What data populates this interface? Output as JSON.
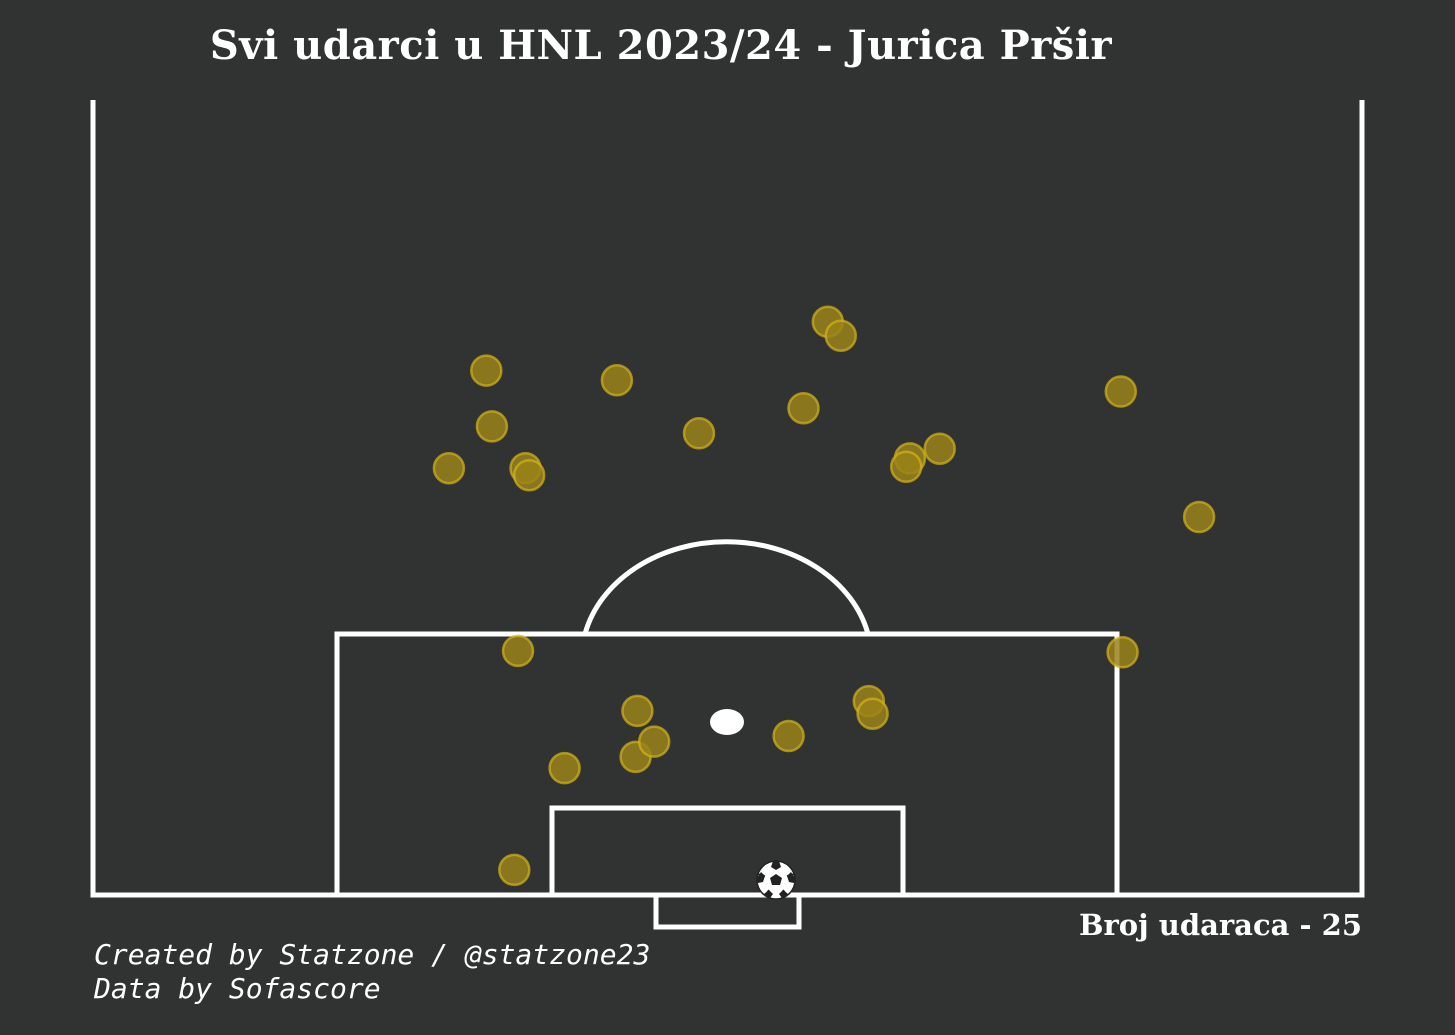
{
  "title": "Svi udarci u HNL 2023/24 - Jurica Pršir",
  "shot_count_label": "Broj udaraca - 25",
  "credits": {
    "line1": "Created by Statzone / @statzone23",
    "line2": "Data by Sofascore"
  },
  "colors": {
    "background": "#313332",
    "lines": "#ffffff",
    "shot_fill": "#9a8319",
    "shot_edge": "#d4b418"
  },
  "icons": {
    "ball": "football-icon"
  },
  "chart_data": {
    "type": "scatter",
    "description_units": "meters from the goal-line center; x = lateral (negative left), y = distance from goal line",
    "series": [
      {
        "values": [
          {
            "x": -11.2,
            "y": 17.5
          },
          {
            "x": -4.8,
            "y": 13.2
          },
          {
            "x": 7.6,
            "y": 13.9
          },
          {
            "x": 7.8,
            "y": 13.0
          },
          {
            "x": 21.2,
            "y": 17.4
          },
          {
            "x": -4.9,
            "y": 9.9
          },
          {
            "x": -3.9,
            "y": 11.0
          },
          {
            "x": 3.3,
            "y": 11.4
          },
          {
            "x": -8.7,
            "y": 9.1
          },
          {
            "x": -11.4,
            "y": 1.8
          },
          {
            "x": 5.4,
            "y": 41.1
          },
          {
            "x": 6.1,
            "y": 40.1
          },
          {
            "x": -12.9,
            "y": 37.6
          },
          {
            "x": -5.9,
            "y": 36.9
          },
          {
            "x": 4.1,
            "y": 34.9
          },
          {
            "x": -12.6,
            "y": 33.6
          },
          {
            "x": -1.5,
            "y": 33.1
          },
          {
            "x": 21.1,
            "y": 36.1
          },
          {
            "x": 11.4,
            "y": 32.0
          },
          {
            "x": 9.8,
            "y": 31.3
          },
          {
            "x": 9.6,
            "y": 30.7
          },
          {
            "x": -14.9,
            "y": 30.6
          },
          {
            "x": -10.8,
            "y": 30.6
          },
          {
            "x": -10.6,
            "y": 30.1
          },
          {
            "x": 25.3,
            "y": 27.1
          }
        ]
      }
    ],
    "xlim": [
      -34,
      34
    ],
    "ylim": [
      0,
      57
    ],
    "pitch": "half-vertical, goal at bottom",
    "grid": false
  }
}
